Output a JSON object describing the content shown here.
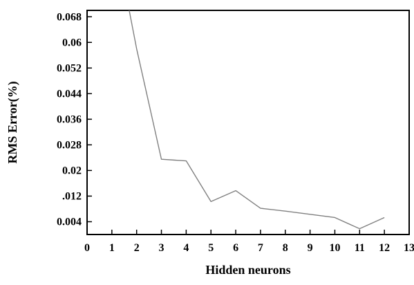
{
  "chart_data": {
    "type": "line",
    "title": "",
    "xlabel": "Hidden neurons",
    "ylabel": "RMS Error(%)",
    "xlim": [
      0,
      13
    ],
    "ylim": [
      0.0,
      0.07
    ],
    "x_tick_labels": [
      "0",
      "1",
      "2",
      "3",
      "4",
      "5",
      "6",
      "7",
      "8",
      "9",
      "10",
      "11",
      "12",
      "13"
    ],
    "x_ticks": [
      0,
      1,
      2,
      3,
      4,
      5,
      6,
      7,
      8,
      9,
      10,
      11,
      12,
      13
    ],
    "y_tick_labels": [
      "0.004",
      ".012",
      "0.02",
      "0.028",
      "0.036",
      "0.044",
      "0.052",
      "0.06",
      "0.068"
    ],
    "y_ticks": [
      0.004,
      0.012,
      0.02,
      0.028,
      0.036,
      0.044,
      0.052,
      0.06,
      0.068
    ],
    "grid": false,
    "legend": "none",
    "series": [
      {
        "x": [
          1.7,
          2,
          3,
          4,
          5,
          6,
          7,
          8,
          9,
          10,
          11,
          12
        ],
        "values": [
          0.07,
          0.058,
          0.0235,
          0.023,
          0.0103,
          0.0137,
          0.0082,
          0.0073,
          0.0063,
          0.0053,
          0.0018,
          0.0053
        ],
        "color": "#808080"
      }
    ]
  }
}
